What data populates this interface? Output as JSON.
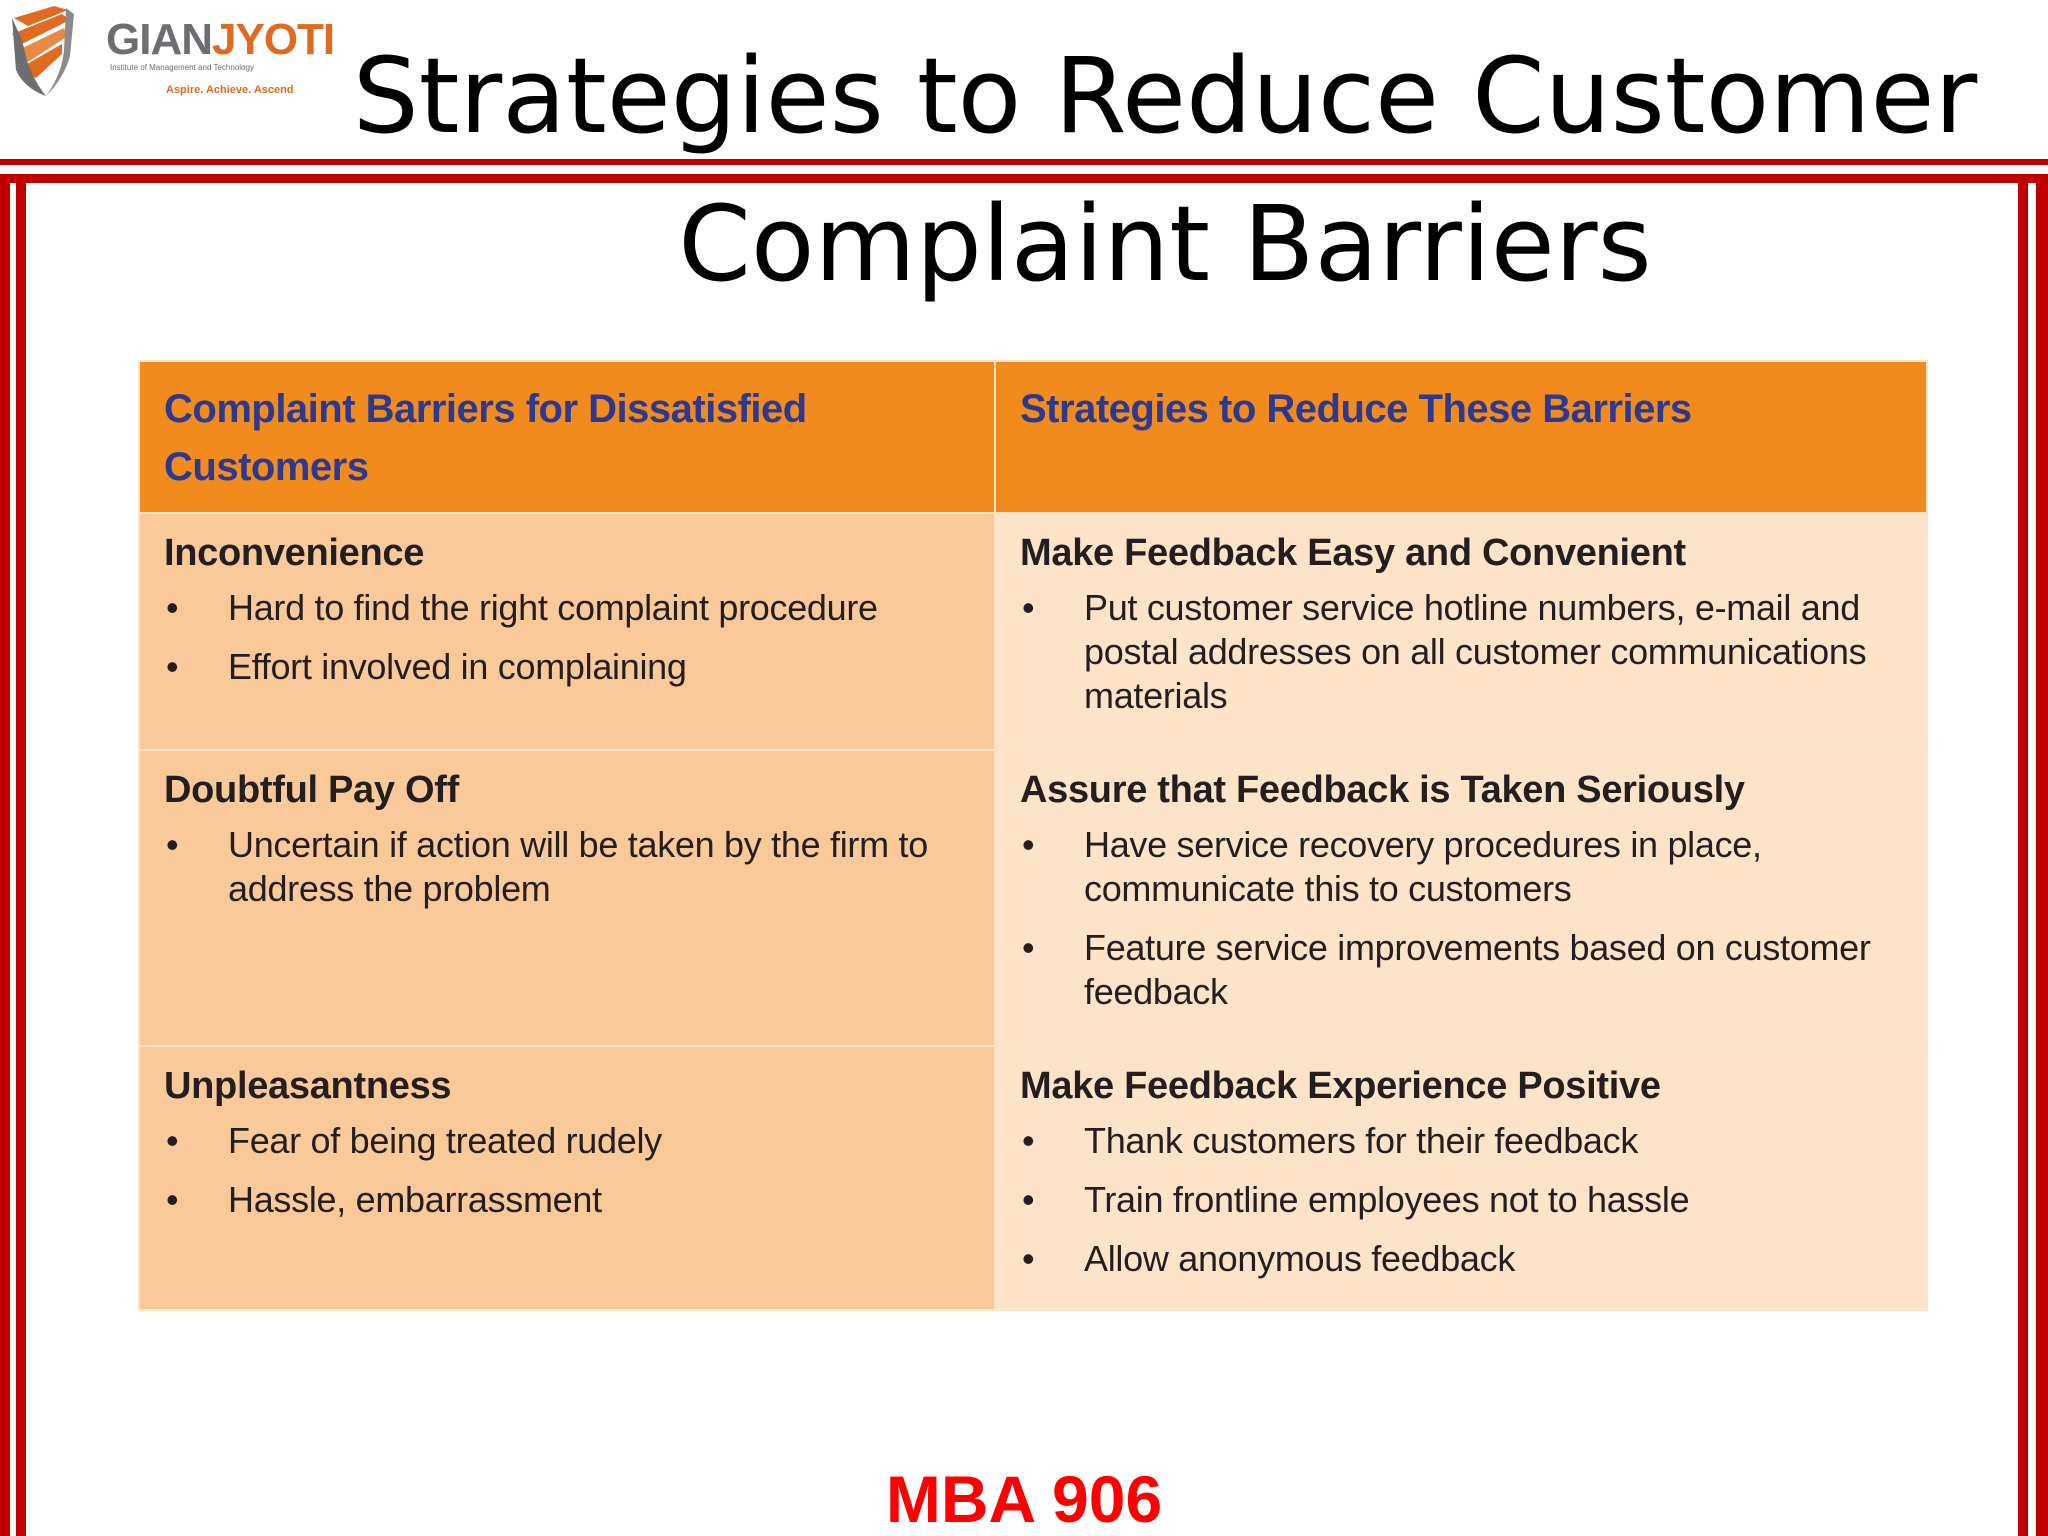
{
  "logo": {
    "name_part1": "GIAN",
    "name_part2": "JYOTI",
    "subtitle": "Institute of Management and Technology",
    "tagline": "Aspire. Achieve. Ascend",
    "shield_colors": [
      "#e06a1f",
      "#6d6e71"
    ]
  },
  "slide": {
    "title": "Strategies to Reduce Customer Complaint Barriers",
    "footer": "MBA 906"
  },
  "table": {
    "headers": [
      "Complaint Barriers for Dissatisfied Customers",
      "Strategies to Reduce These Barriers"
    ],
    "rows": [
      {
        "barrier": {
          "heading": "Inconvenience",
          "points": [
            "Hard to find the right complaint procedure",
            "Effort involved in complaining"
          ]
        },
        "strategy": {
          "heading": "Make Feedback Easy and Convenient",
          "points": [
            "Put customer service hotline numbers, e-mail and postal addresses on all customer communications materials"
          ]
        }
      },
      {
        "barrier": {
          "heading": "Doubtful Pay Off",
          "points": [
            "Uncertain if action will be taken by the firm to address the problem"
          ]
        },
        "strategy": {
          "heading": "Assure that Feedback is Taken Seriously",
          "points": [
            "Have service recovery procedures in place, communicate this to customers",
            "Feature service improvements based on customer feedback"
          ]
        }
      },
      {
        "barrier": {
          "heading": "Unpleasantness",
          "points": [
            "Fear of being treated rudely",
            "Hassle, embarrassment"
          ]
        },
        "strategy": {
          "heading": "Make Feedback Experience Positive",
          "points": [
            "Thank customers for their feedback",
            "Train frontline employees not to hassle",
            "Allow anonymous feedback"
          ]
        }
      }
    ]
  },
  "colors": {
    "frame": "#c00000",
    "header_fill": "#f28b1e",
    "header_text": "#2b3990",
    "left_cell_fill": "#fac999",
    "right_cell_fill": "#fde3c8",
    "footer_text": "#ff0000"
  }
}
